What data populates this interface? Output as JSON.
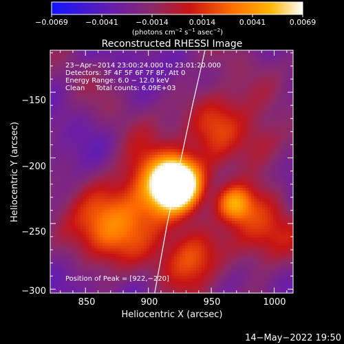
{
  "colorbar": {
    "ticks": [
      "−0.0069",
      "−0.0041",
      "−0.0014",
      "0.0014",
      "0.0041",
      "0.0069"
    ],
    "label_main": "(photons cm",
    "label_sup1": "−2",
    "label_mid": " s",
    "label_sup2": "−1",
    "label_end": " asec",
    "label_sup3": "−2",
    "label_close": ")"
  },
  "title": "Reconstructed RHESSI Image",
  "info": {
    "line1": "23−Apr−2014 23:00:24.000 to 23:01:20.000",
    "line2": "Detectors: 3F 4F 5F 6F 7F 8F, Att 0",
    "line3": "Energy Range: 6.0 − 12.0 keV",
    "line4": "Clean     Total counts: 6.09E+03"
  },
  "peak_text": "Position of Peak = [922,−220]",
  "date_stamp": "14−May−2022 19:50",
  "chart_data": {
    "type": "heatmap",
    "title": "Reconstructed RHESSI Image",
    "xlabel": "Heliocentric X (arcsec)",
    "ylabel": "Heliocentric Y (arcsec)",
    "xlim": [
      822,
      1015
    ],
    "ylim": [
      -303,
      -118
    ],
    "xticks": [
      "850",
      "900",
      "950",
      "1000"
    ],
    "xtick_values": [
      850,
      900,
      950,
      1000
    ],
    "yticks": [
      "−150",
      "−200",
      "−250",
      "−300"
    ],
    "ytick_values": [
      -150,
      -200,
      -250,
      -300
    ],
    "colorbar_range": [
      -0.0069,
      0.0069
    ],
    "colorscale": [
      "#1414ff",
      "#6a1ea8",
      "#8a2a6a",
      "#c81414",
      "#ff6e00",
      "#ffb400",
      "#ffffff"
    ],
    "peak": {
      "x": 922,
      "y": -220
    },
    "limb_points": [
      [
        945,
        -118
      ],
      [
        935,
        -160
      ],
      [
        925,
        -205
      ],
      [
        915,
        -250
      ],
      [
        905,
        -303
      ]
    ]
  }
}
